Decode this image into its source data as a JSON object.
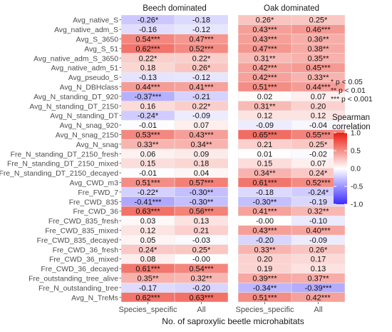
{
  "chart_data": {
    "type": "heatmap",
    "xlabel": "No. of saproxylic beetle microhabitats",
    "facets": [
      "Beech dominated",
      "Oak dominated"
    ],
    "columns": [
      "Species_specific",
      "All"
    ],
    "rows": [
      "Avg_native_S",
      "Avg_native_adm_S",
      "Avg_S_3650",
      "Avg_S_51",
      "Avg_native_adm_S_3650",
      "Avg_native_adm_51",
      "Avg_pseudo_S",
      "Avg_N_DBHclass",
      "Avg_N_standing_DT_920",
      "Avg_N_standing_DT_2150",
      "Avg_N_standing_DT",
      "Avg_N_snag_920",
      "Avg_N_snag_2150",
      "Avg_N_snag",
      "Fre_N_standing_DT_2150_fresh",
      "Fre_N_standing_DT_2150_mixed",
      "Fre_N_standing_DT_2150_decayed",
      "Avg_CWD_m3",
      "Fre_FWD_7",
      "Fre_CWD_835",
      "Fre_CWD_36",
      "Fre_CWD_835_fresh",
      "Fre_CWD_835_mixed",
      "Fre_CWD_835_decayed",
      "Fre_CWD_36_fresh",
      "Fre_CWD_36_mixed",
      "Fre_CWD_36_decayed",
      "Fre_outstanding_tree_alive",
      "Fre_N_outstanding_tree",
      "Avg_N_TreMs"
    ],
    "cells": [
      [
        "-0.26*",
        "-0.18",
        "0.26*",
        "0.25*"
      ],
      [
        "-0.16",
        "-0.12",
        "0.43***",
        "0.46***"
      ],
      [
        "0.54***",
        "0.47***",
        "0.43***",
        "0.36**"
      ],
      [
        "0.62***",
        "0.52***",
        "0.47***",
        "0.38**"
      ],
      [
        "0.22*",
        "0.22*",
        "0.31**",
        "0.35**"
      ],
      [
        "0.18",
        "0.26*",
        "0.42***",
        "0.45***"
      ],
      [
        "-0.13",
        "-0.12",
        "0.42***",
        "0.33**"
      ],
      [
        "0.44***",
        "0.41***",
        "0.51***",
        "0.44***"
      ],
      [
        "-0.37***",
        "-0.21",
        "0.02",
        "0.07"
      ],
      [
        "0.16",
        "0.22*",
        "0.31**",
        "0.20"
      ],
      [
        "-0.24*",
        "-0.09",
        "0.12",
        "0.12"
      ],
      [
        "-0.01",
        "0.07",
        "-0.09",
        "-0.04"
      ],
      [
        "0.53***",
        "0.43***",
        "0.65***",
        "0.55***"
      ],
      [
        "0.33**",
        "0.34**",
        "0.21",
        "0.25*"
      ],
      [
        "0.06",
        "0.09",
        "0.01",
        "-0.02"
      ],
      [
        "0.15",
        "0.18",
        "0.15",
        "0.07"
      ],
      [
        "-0.01",
        "0.04",
        "0.34**",
        "0.24*"
      ],
      [
        "0.51***",
        "0.57***",
        "0.61***",
        "0.52***"
      ],
      [
        "-0.22*",
        "-0.30**",
        "-0.18",
        "-0.24*"
      ],
      [
        "-0.41***",
        "-0.30**",
        "-0.30**",
        "-0.19"
      ],
      [
        "0.63***",
        "0.56***",
        "0.41***",
        "0.32**"
      ],
      [
        "0.03",
        "0.13",
        "-0.00",
        "-0.10"
      ],
      [
        "0.12",
        "0.21",
        "0.43***",
        "0.40***"
      ],
      [
        "0.05",
        "-0.03",
        "-0.20",
        "-0.09"
      ],
      [
        "0.24*",
        "0.25*",
        "0.33**",
        "0.26*"
      ],
      [
        "0.08",
        "-0.00",
        "0.20",
        "0.17"
      ],
      [
        "0.61***",
        "0.54***",
        "0.19",
        "0.13"
      ],
      [
        "0.35**",
        "0.32**",
        "0.39***",
        "0.37**"
      ],
      [
        "-0.17",
        "-0.20",
        "-0.34**",
        "-0.39***"
      ],
      [
        "0.62***",
        "0.63***",
        "0.51***",
        "0.42***"
      ]
    ],
    "significance_legend": [
      "* p < 0.05",
      "** p < 0.01",
      "*** p < 0.001"
    ],
    "colorbar": {
      "title": [
        "Spearman",
        "correlation"
      ],
      "range": [
        -1,
        1
      ],
      "ticks": [
        "1.0",
        "0.5",
        "0.0",
        "-0.5",
        "-1.0"
      ],
      "colors": {
        "low": "#3b2bff",
        "mid": "#ffffff",
        "high": "#ea1f10"
      }
    }
  }
}
